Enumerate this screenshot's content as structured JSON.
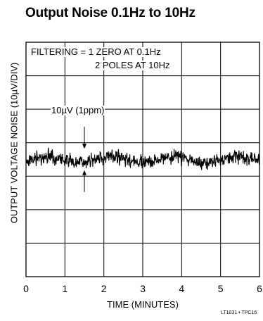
{
  "title": "Output Noise 0.1Hz to 10Hz",
  "chart_data": {
    "type": "line",
    "title": "Output Noise 0.1Hz to 10Hz",
    "xlabel": "TIME (MINUTES)",
    "ylabel": "OUTPUT VOLTAGE NOISE (10µV/DIV)",
    "xlim": [
      0,
      6
    ],
    "ylim": [
      -3.5,
      3.5
    ],
    "x_ticks": [
      "0",
      "1",
      "2",
      "3",
      "4",
      "5",
      "6"
    ],
    "x_divisions": 6,
    "y_divisions": 7,
    "grid": true,
    "series": [
      {
        "x": [
          0,
          6
        ],
        "y": [
          0,
          0
        ]
      }
    ],
    "noise_band_divisions": 0.6,
    "annotations": {
      "filtering_line1": "FILTERING = 1 ZERO AT 0.1Hz",
      "filtering_line2": "2 POLES AT 10Hz",
      "scale_marker": "10µV (1ppm)"
    },
    "figure_code": "LT1031 • TPC16"
  }
}
